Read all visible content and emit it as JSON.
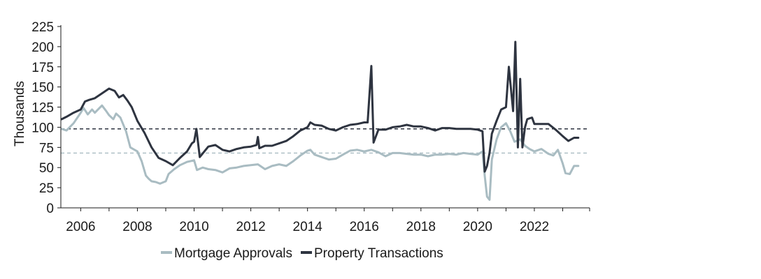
{
  "chart_data": {
    "type": "line",
    "title": "",
    "xlabel": "",
    "ylabel": "Thousands",
    "ylim": [
      0,
      225
    ],
    "xlim": [
      2005.3,
      2023.95
    ],
    "yticks": [
      0,
      25,
      50,
      75,
      100,
      125,
      150,
      175,
      200,
      225
    ],
    "ytick_labels": [
      "0",
      "25",
      "50",
      "75",
      "100",
      "125",
      "150",
      "175",
      "200",
      "225"
    ],
    "xticks": [
      2006,
      2008,
      2010,
      2012,
      2014,
      2016,
      2018,
      2020,
      2022
    ],
    "xtick_labels": [
      "2006",
      "2008",
      "2010",
      "2012",
      "2014",
      "2016",
      "2018",
      "2020",
      "2022"
    ],
    "grid": false,
    "legend_position": "bottom",
    "reference_lines": [
      {
        "series": "Property Transactions",
        "value": 98,
        "color": "#2e3440",
        "style": "dashed"
      },
      {
        "series": "Mortgage Approvals",
        "value": 68,
        "color": "#a9bcc2",
        "style": "dashed"
      }
    ],
    "series": [
      {
        "name": "Mortgage Approvals",
        "color": "#a9bcc2",
        "x": [
          2005.33,
          2005.5,
          2005.75,
          2006.0,
          2006.1,
          2006.25,
          2006.4,
          2006.5,
          2006.75,
          2006.9,
          2007.0,
          2007.15,
          2007.25,
          2007.4,
          2007.6,
          2007.75,
          2007.9,
          2008.0,
          2008.15,
          2008.3,
          2008.4,
          2008.5,
          2008.65,
          2008.8,
          2009.0,
          2009.1,
          2009.3,
          2009.5,
          2009.75,
          2010.0,
          2010.1,
          2010.3,
          2010.5,
          2010.75,
          2011.0,
          2011.25,
          2011.5,
          2011.75,
          2012.0,
          2012.25,
          2012.5,
          2012.75,
          2013.0,
          2013.25,
          2013.5,
          2013.75,
          2014.0,
          2014.1,
          2014.25,
          2014.5,
          2014.75,
          2015.0,
          2015.25,
          2015.5,
          2015.75,
          2016.0,
          2016.25,
          2016.5,
          2016.75,
          2017.0,
          2017.25,
          2017.5,
          2017.75,
          2018.0,
          2018.25,
          2018.5,
          2018.75,
          2019.0,
          2019.25,
          2019.5,
          2019.75,
          2020.0,
          2020.17,
          2020.25,
          2020.33,
          2020.42,
          2020.5,
          2020.67,
          2020.83,
          2021.0,
          2021.15,
          2021.3,
          2021.5,
          2021.67,
          2021.83,
          2022.0,
          2022.25,
          2022.5,
          2022.67,
          2022.83,
          2023.0,
          2023.1,
          2023.25,
          2023.4,
          2023.55
        ],
        "values": [
          98,
          96,
          105,
          118,
          124,
          116,
          122,
          118,
          127,
          120,
          115,
          110,
          117,
          112,
          95,
          75,
          72,
          70,
          58,
          40,
          36,
          33,
          32,
          30,
          33,
          42,
          48,
          53,
          57,
          59,
          47,
          50,
          48,
          47,
          44,
          49,
          50,
          52,
          53,
          54,
          48,
          52,
          54,
          52,
          58,
          65,
          71,
          72,
          66,
          63,
          60,
          61,
          66,
          71,
          72,
          70,
          72,
          69,
          64,
          68,
          68,
          67,
          66,
          66,
          64,
          66,
          66,
          67,
          66,
          68,
          67,
          66,
          70,
          40,
          14,
          10,
          60,
          85,
          100,
          105,
          95,
          82,
          85,
          77,
          73,
          70,
          73,
          67,
          65,
          72,
          55,
          43,
          42,
          52,
          52
        ]
      },
      {
        "name": "Property Transactions",
        "color": "#2e3440",
        "x": [
          2005.33,
          2005.5,
          2005.75,
          2006.0,
          2006.15,
          2006.3,
          2006.5,
          2006.75,
          2007.0,
          2007.2,
          2007.35,
          2007.5,
          2007.65,
          2007.8,
          2008.0,
          2008.25,
          2008.5,
          2008.75,
          2009.0,
          2009.25,
          2009.5,
          2009.75,
          2009.92,
          2010.0,
          2010.08,
          2010.2,
          2010.5,
          2010.75,
          2011.0,
          2011.25,
          2011.5,
          2011.75,
          2012.0,
          2012.2,
          2012.25,
          2012.3,
          2012.5,
          2012.75,
          2013.0,
          2013.25,
          2013.5,
          2013.75,
          2014.0,
          2014.1,
          2014.25,
          2014.5,
          2014.75,
          2015.0,
          2015.25,
          2015.5,
          2015.75,
          2016.0,
          2016.12,
          2016.25,
          2016.33,
          2016.5,
          2016.75,
          2017.0,
          2017.25,
          2017.5,
          2017.75,
          2018.0,
          2018.25,
          2018.5,
          2018.75,
          2019.0,
          2019.25,
          2019.5,
          2019.75,
          2020.0,
          2020.17,
          2020.25,
          2020.33,
          2020.42,
          2020.5,
          2020.67,
          2020.83,
          2021.0,
          2021.1,
          2021.25,
          2021.33,
          2021.42,
          2021.5,
          2021.58,
          2021.67,
          2021.75,
          2021.83,
          2021.92,
          2022.0,
          2022.25,
          2022.5,
          2022.75,
          2023.0,
          2023.2,
          2023.4,
          2023.55
        ],
        "values": [
          110,
          113,
          118,
          122,
          132,
          134,
          136,
          142,
          148,
          145,
          137,
          140,
          133,
          125,
          108,
          93,
          75,
          62,
          58,
          53,
          62,
          70,
          80,
          82,
          98,
          63,
          76,
          78,
          72,
          70,
          73,
          75,
          76,
          78,
          88,
          74,
          77,
          77,
          80,
          83,
          89,
          96,
          100,
          106,
          103,
          102,
          98,
          96,
          100,
          103,
          104,
          106,
          106,
          176,
          81,
          97,
          97,
          100,
          101,
          103,
          101,
          101,
          99,
          96,
          99,
          99,
          98,
          98,
          98,
          97,
          95,
          45,
          52,
          68,
          92,
          108,
          122,
          125,
          175,
          120,
          206,
          75,
          160,
          75,
          100,
          110,
          111,
          112,
          104,
          104,
          104,
          97,
          89,
          83,
          87,
          87
        ]
      }
    ]
  },
  "legend": {
    "items": [
      {
        "label": "Mortgage Approvals",
        "color": "#a9bcc2"
      },
      {
        "label": "Property Transactions",
        "color": "#2e3440"
      }
    ]
  }
}
